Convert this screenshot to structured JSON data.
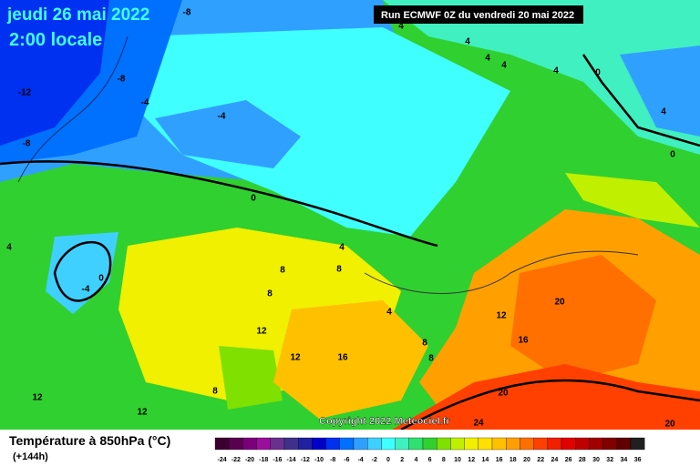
{
  "header": {
    "date": "jeudi 26 mai 2022",
    "time": "2:00 locale",
    "run": "Run ECMWF 0Z du vendredi 20 mai 2022"
  },
  "copyright": "Copyright 2022 Meteociel.fr",
  "legend": {
    "title": "Température à 850hPa (°C)",
    "lead": "(+144h)",
    "ticks": [
      -24,
      -22,
      -20,
      -18,
      -16,
      -14,
      -12,
      -10,
      -8,
      -6,
      -4,
      -2,
      0,
      2,
      4,
      6,
      8,
      10,
      12,
      14,
      16,
      18,
      20,
      22,
      24,
      26,
      28,
      30,
      32,
      34,
      36
    ],
    "colors": [
      "#3b0030",
      "#5a0050",
      "#7a007a",
      "#9a109a",
      "#6a3090",
      "#40308a",
      "#2020a0",
      "#0000c8",
      "#0030f0",
      "#0070ff",
      "#30a0ff",
      "#40d0ff",
      "#40ffff",
      "#40f0c0",
      "#30e070",
      "#30d030",
      "#80e000",
      "#c0f000",
      "#f0f000",
      "#ffe000",
      "#ffc000",
      "#ffa000",
      "#ff7000",
      "#ff4000",
      "#f02000",
      "#e00000",
      "#c00000",
      "#a00000",
      "#800000",
      "#600000",
      "#202020"
    ]
  },
  "contour_labels": [
    -8,
    -8,
    -12,
    -8,
    -4,
    -4,
    4,
    4,
    4,
    4,
    4,
    0,
    4,
    0,
    0,
    4,
    0,
    -4,
    8,
    8,
    8,
    4,
    4,
    12,
    12,
    16,
    8,
    8,
    12,
    16,
    20,
    20,
    8,
    12,
    12,
    24,
    20
  ]
}
